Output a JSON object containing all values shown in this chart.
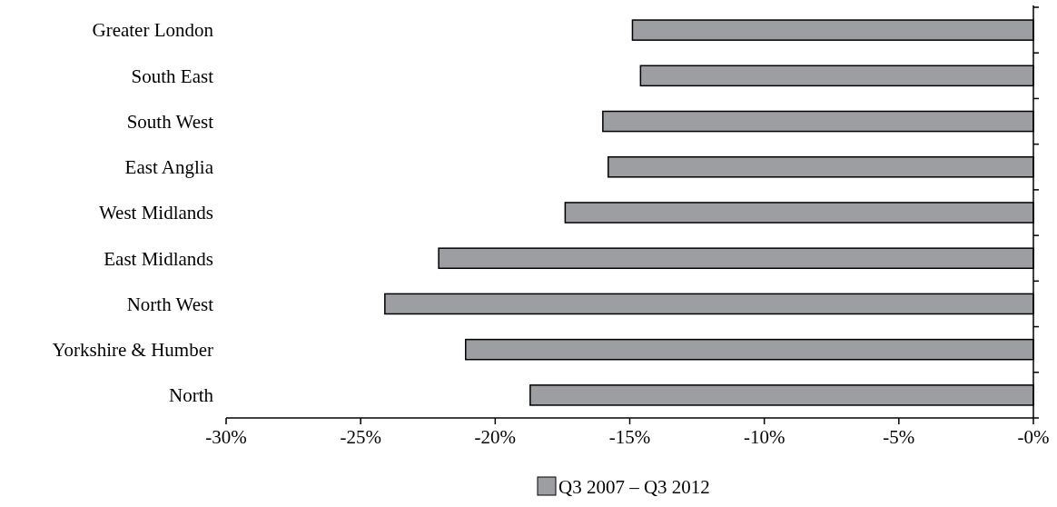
{
  "chart_data": {
    "type": "bar",
    "orientation": "horizontal",
    "categories": [
      "Greater London",
      "South East",
      "South West",
      "East Anglia",
      "West Midlands",
      "East Midlands",
      "North West",
      "Yorkshire & Humber",
      "North"
    ],
    "series": [
      {
        "name": "Q3 2007 – Q3 2012",
        "color": "#9d9ea2",
        "values": [
          -14.9,
          -14.6,
          -16.0,
          -15.8,
          -17.4,
          -22.1,
          -24.1,
          -21.1,
          -18.7
        ]
      }
    ],
    "xlim": [
      -30,
      0
    ],
    "xticks": [
      {
        "value": -30,
        "label": "-30%"
      },
      {
        "value": -25,
        "label": "-25%"
      },
      {
        "value": -20,
        "label": "-20%"
      },
      {
        "value": -15,
        "label": "-15%"
      },
      {
        "value": -10,
        "label": "-10%"
      },
      {
        "value": -5,
        "label": "-5%"
      },
      {
        "value": 0,
        "label": "-0%"
      }
    ],
    "grid": false,
    "legend": "bottom"
  }
}
